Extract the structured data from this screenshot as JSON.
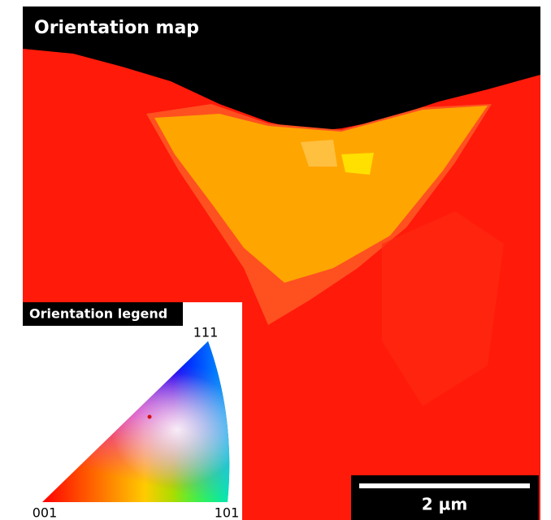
{
  "title": "Orientation map",
  "legend": {
    "title": "Orientation legend",
    "corner_111": "111",
    "corner_001": "001",
    "corner_101": "101"
  },
  "scale_bar": {
    "label": "2 µm"
  }
}
